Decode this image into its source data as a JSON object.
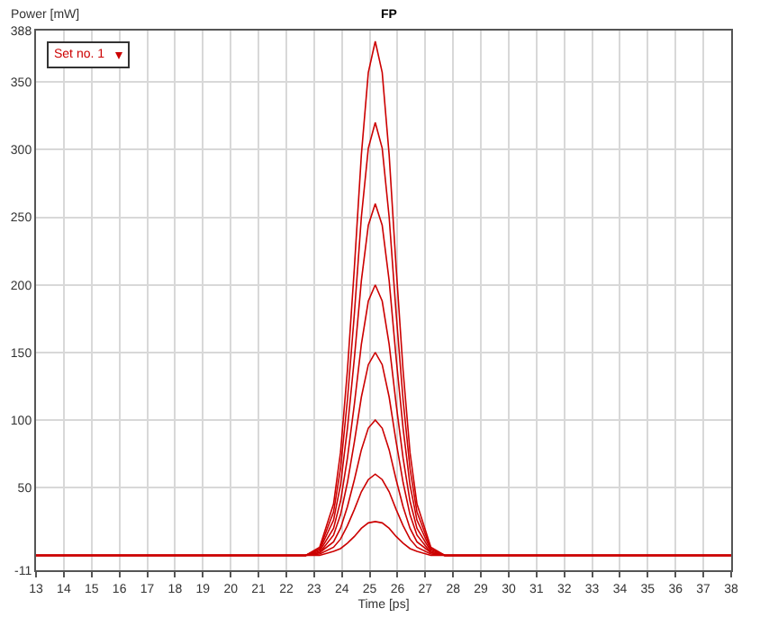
{
  "chart_data": {
    "type": "line",
    "title": "FP",
    "xlabel": "Time [ps]",
    "ylabel": "Power [mW]",
    "annotations": [
      "Set no. 1"
    ],
    "x": [
      13,
      22.2,
      22.7,
      23.2,
      23.7,
      23.95,
      24.2,
      24.45,
      24.7,
      24.95,
      25.2,
      25.45,
      25.7,
      25.95,
      26.2,
      26.45,
      26.7,
      27.2,
      27.7,
      38
    ],
    "series": [
      {
        "color": "#cc0000",
        "values": [
          0,
          0,
          0,
          6,
          38,
          76,
          137,
          213,
          296,
          357,
          380,
          357,
          296,
          213,
          137,
          76,
          38,
          6,
          0,
          0
        ]
      },
      {
        "color": "#cc0000",
        "values": [
          0,
          0,
          0,
          5,
          32,
          64,
          115,
          179,
          250,
          301,
          320,
          301,
          250,
          179,
          115,
          64,
          32,
          5,
          0,
          0
        ]
      },
      {
        "color": "#cc0000",
        "values": [
          0,
          0,
          0,
          4,
          26,
          52,
          94,
          146,
          203,
          244,
          260,
          244,
          203,
          146,
          94,
          52,
          26,
          4,
          0,
          0
        ]
      },
      {
        "color": "#cc0000",
        "values": [
          0,
          0,
          0,
          3,
          20,
          40,
          72,
          112,
          156,
          188,
          200,
          188,
          156,
          112,
          72,
          40,
          20,
          3,
          0,
          0
        ]
      },
      {
        "color": "#cc0000",
        "values": [
          0,
          0,
          0,
          2,
          15,
          30,
          54,
          84,
          117,
          141,
          150,
          141,
          117,
          84,
          54,
          30,
          15,
          2,
          0,
          0
        ]
      },
      {
        "color": "#cc0000",
        "values": [
          0,
          0,
          0,
          2,
          10,
          20,
          36,
          56,
          78,
          94,
          100,
          94,
          78,
          56,
          36,
          20,
          10,
          2,
          0,
          0
        ]
      },
      {
        "color": "#cc0000",
        "values": [
          0,
          0,
          0,
          1,
          6,
          12,
          22,
          34,
          47,
          56,
          60,
          56,
          47,
          34,
          22,
          12,
          6,
          1,
          0,
          0
        ]
      },
      {
        "color": "#cc0000",
        "values": [
          0,
          0,
          0,
          0,
          3,
          5,
          9,
          14,
          20,
          24,
          25,
          24,
          20,
          14,
          9,
          5,
          3,
          0,
          0,
          0
        ]
      }
    ],
    "xlim": [
      13,
      38
    ],
    "xticks": [
      13,
      14,
      15,
      16,
      17,
      18,
      19,
      20,
      21,
      22,
      23,
      24,
      25,
      26,
      27,
      28,
      29,
      30,
      31,
      32,
      33,
      34,
      35,
      36,
      37,
      38
    ],
    "ylim": [
      -11,
      388
    ],
    "yticks": [
      -11,
      50,
      100,
      150,
      200,
      250,
      300,
      350,
      388
    ],
    "grid": true,
    "marker": "none",
    "line_style": "solid"
  }
}
